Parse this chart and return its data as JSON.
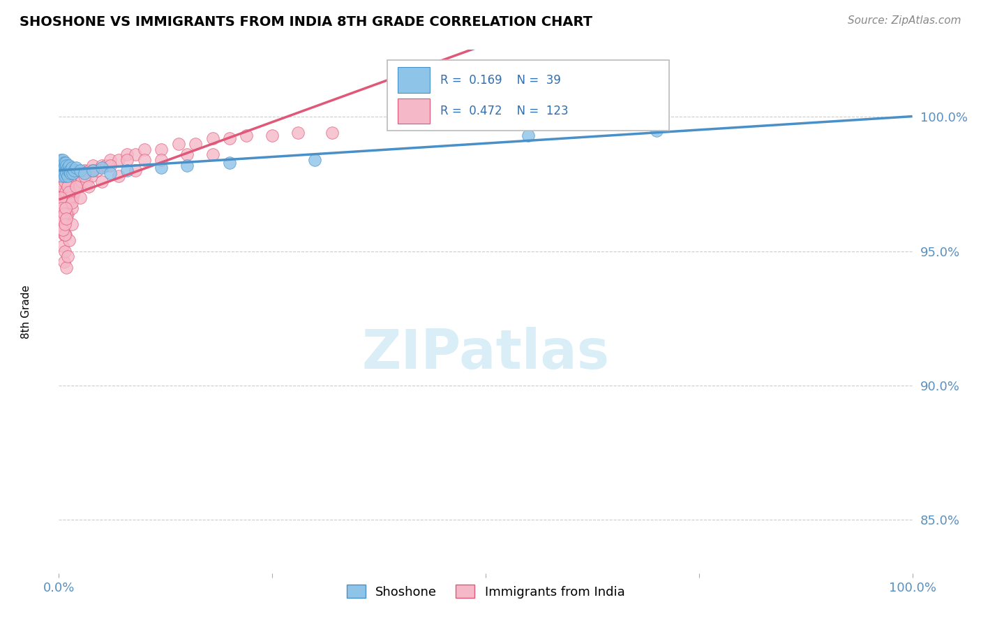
{
  "title": "SHOSHONE VS IMMIGRANTS FROM INDIA 8TH GRADE CORRELATION CHART",
  "source": "Source: ZipAtlas.com",
  "ylabel": "8th Grade",
  "legend_shoshone": "Shoshone",
  "legend_india": "Immigrants from India",
  "R_shoshone": 0.169,
  "N_shoshone": 39,
  "R_india": 0.472,
  "N_india": 123,
  "color_shoshone": "#8ec4e8",
  "color_india": "#f5b8c8",
  "color_shoshone_line": "#4a90c8",
  "color_india_line": "#e05878",
  "watermark_color": "#daeef8",
  "background_color": "#ffffff",
  "grid_color": "#cccccc",
  "xlim": [
    0.0,
    1.0
  ],
  "ylim": [
    0.83,
    1.025
  ],
  "yticks": [
    0.85,
    0.9,
    0.95,
    1.0
  ],
  "ytick_labels": [
    "85.0%",
    "90.0%",
    "95.0%",
    "100.0%"
  ],
  "shoshone_x": [
    0.001,
    0.002,
    0.002,
    0.003,
    0.003,
    0.004,
    0.004,
    0.005,
    0.005,
    0.006,
    0.006,
    0.007,
    0.007,
    0.008,
    0.008,
    0.009,
    0.009,
    0.01,
    0.01,
    0.011,
    0.012,
    0.013,
    0.014,
    0.015,
    0.016,
    0.018,
    0.02,
    0.025,
    0.03,
    0.04,
    0.05,
    0.06,
    0.08,
    0.12,
    0.15,
    0.2,
    0.3,
    0.55,
    0.7
  ],
  "shoshone_y": [
    0.982,
    0.984,
    0.98,
    0.983,
    0.979,
    0.981,
    0.978,
    0.984,
    0.98,
    0.983,
    0.979,
    0.982,
    0.978,
    0.983,
    0.98,
    0.982,
    0.979,
    0.981,
    0.978,
    0.98,
    0.982,
    0.98,
    0.979,
    0.981,
    0.979,
    0.98,
    0.981,
    0.98,
    0.979,
    0.98,
    0.981,
    0.979,
    0.98,
    0.981,
    0.982,
    0.983,
    0.984,
    0.993,
    0.995
  ],
  "india_x": [
    0.001,
    0.001,
    0.002,
    0.002,
    0.002,
    0.003,
    0.003,
    0.003,
    0.003,
    0.004,
    0.004,
    0.004,
    0.005,
    0.005,
    0.005,
    0.005,
    0.006,
    0.006,
    0.006,
    0.006,
    0.007,
    0.007,
    0.007,
    0.008,
    0.008,
    0.008,
    0.009,
    0.009,
    0.01,
    0.01,
    0.01,
    0.011,
    0.011,
    0.012,
    0.012,
    0.013,
    0.013,
    0.014,
    0.014,
    0.015,
    0.015,
    0.016,
    0.016,
    0.017,
    0.018,
    0.018,
    0.019,
    0.02,
    0.021,
    0.022,
    0.024,
    0.025,
    0.027,
    0.03,
    0.032,
    0.035,
    0.038,
    0.04,
    0.045,
    0.05,
    0.055,
    0.06,
    0.07,
    0.08,
    0.09,
    0.1,
    0.12,
    0.14,
    0.16,
    0.18,
    0.2,
    0.22,
    0.25,
    0.28,
    0.32,
    0.003,
    0.004,
    0.005,
    0.006,
    0.007,
    0.008,
    0.009,
    0.01,
    0.012,
    0.015,
    0.003,
    0.004,
    0.005,
    0.006,
    0.007,
    0.008,
    0.009,
    0.01,
    0.012,
    0.015,
    0.003,
    0.005,
    0.007,
    0.009,
    0.012,
    0.015,
    0.02,
    0.025,
    0.03,
    0.035,
    0.04,
    0.05,
    0.06,
    0.07,
    0.08,
    0.09,
    0.1,
    0.12,
    0.15,
    0.18,
    0.002,
    0.003,
    0.004,
    0.005,
    0.006,
    0.007,
    0.008,
    0.009
  ],
  "india_y": [
    0.978,
    0.972,
    0.982,
    0.976,
    0.968,
    0.98,
    0.974,
    0.966,
    0.96,
    0.978,
    0.972,
    0.964,
    0.98,
    0.974,
    0.966,
    0.958,
    0.978,
    0.972,
    0.964,
    0.956,
    0.976,
    0.97,
    0.962,
    0.978,
    0.972,
    0.962,
    0.976,
    0.968,
    0.978,
    0.972,
    0.964,
    0.976,
    0.968,
    0.978,
    0.97,
    0.98,
    0.972,
    0.978,
    0.97,
    0.98,
    0.972,
    0.978,
    0.97,
    0.976,
    0.98,
    0.972,
    0.976,
    0.98,
    0.974,
    0.978,
    0.974,
    0.978,
    0.976,
    0.98,
    0.976,
    0.98,
    0.978,
    0.982,
    0.98,
    0.982,
    0.982,
    0.984,
    0.984,
    0.986,
    0.986,
    0.988,
    0.988,
    0.99,
    0.99,
    0.992,
    0.992,
    0.993,
    0.993,
    0.994,
    0.994,
    0.964,
    0.958,
    0.952,
    0.946,
    0.95,
    0.956,
    0.944,
    0.948,
    0.954,
    0.96,
    0.982,
    0.978,
    0.974,
    0.97,
    0.976,
    0.972,
    0.968,
    0.974,
    0.97,
    0.966,
    0.968,
    0.962,
    0.956,
    0.964,
    0.972,
    0.968,
    0.974,
    0.97,
    0.978,
    0.974,
    0.98,
    0.976,
    0.982,
    0.978,
    0.984,
    0.98,
    0.984,
    0.984,
    0.986,
    0.986,
    0.97,
    0.966,
    0.962,
    0.958,
    0.964,
    0.96,
    0.966,
    0.962
  ]
}
